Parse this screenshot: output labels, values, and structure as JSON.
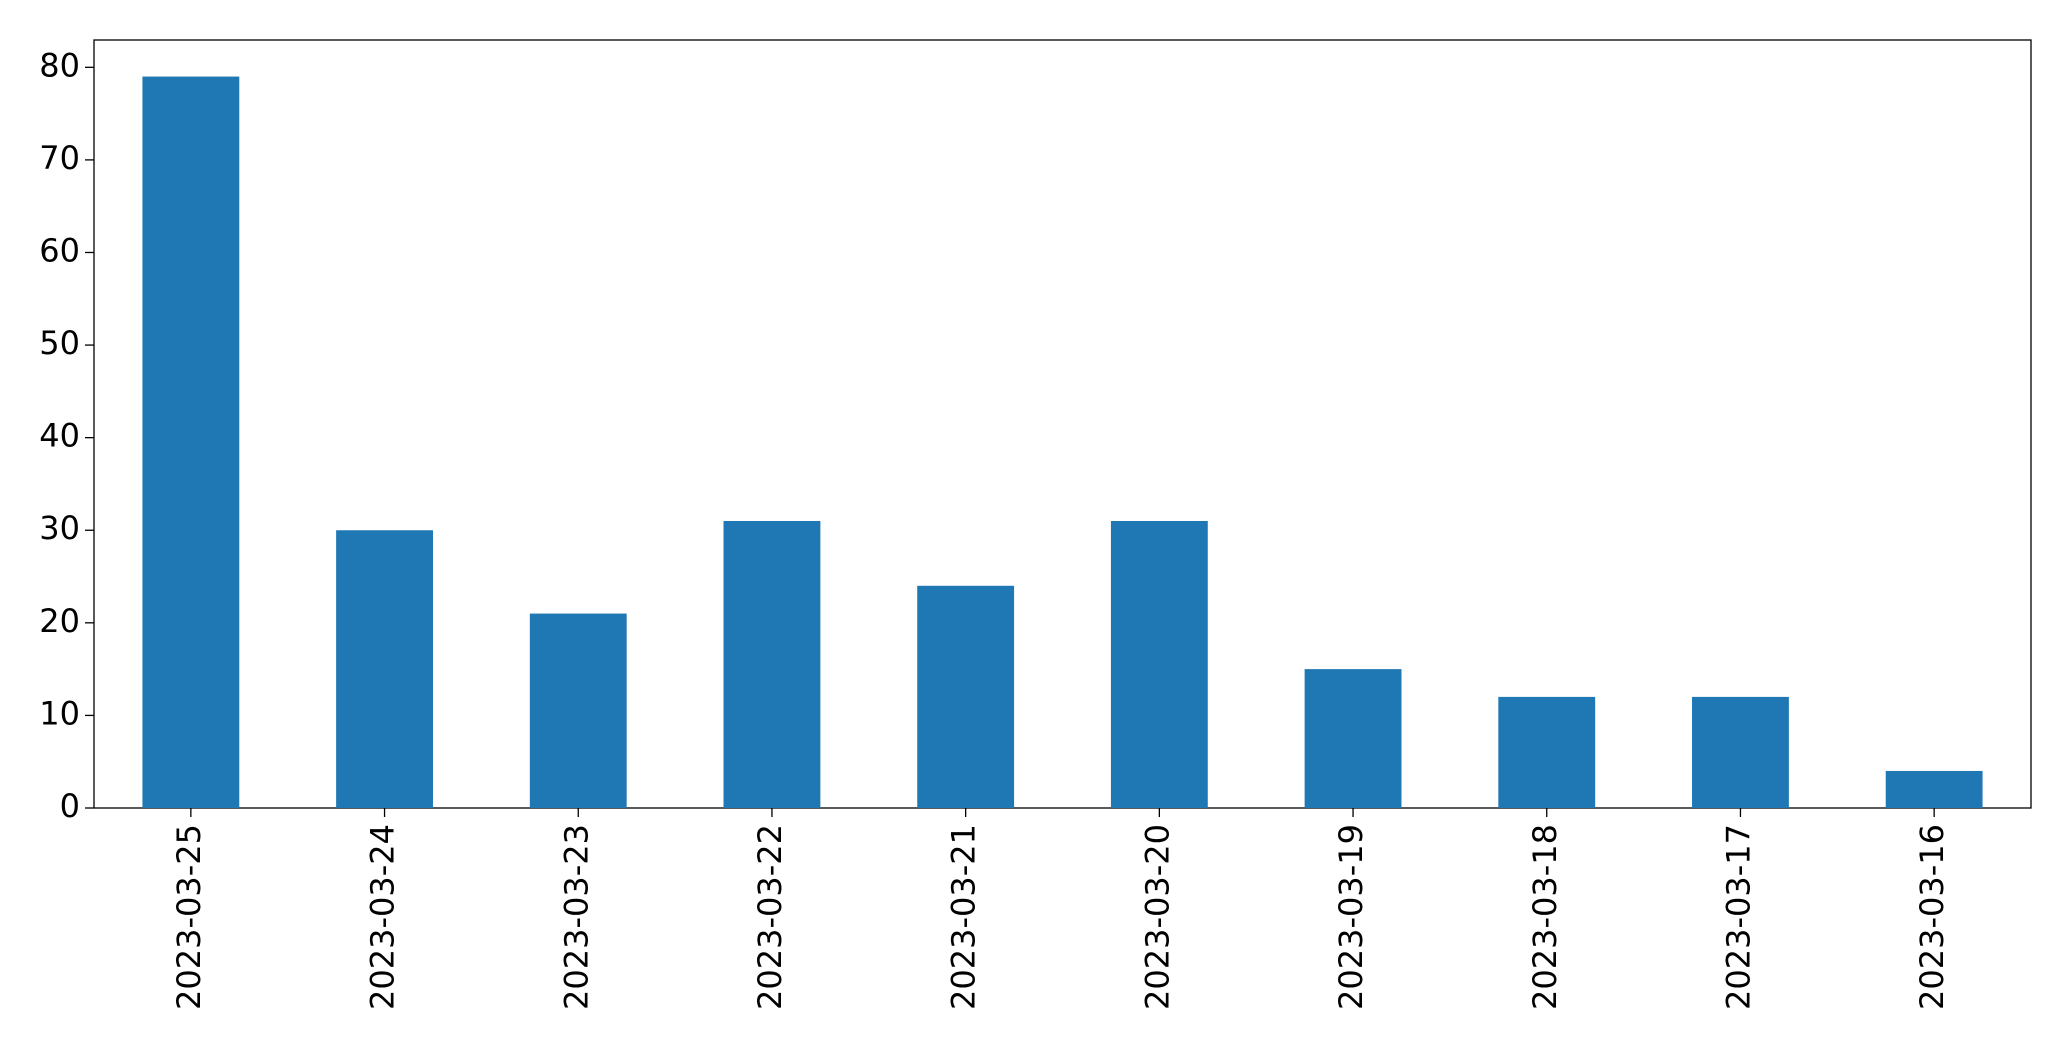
{
  "chart_data": {
    "type": "bar",
    "categories": [
      "2023-03-25",
      "2023-03-24",
      "2023-03-23",
      "2023-03-22",
      "2023-03-21",
      "2023-03-20",
      "2023-03-19",
      "2023-03-18",
      "2023-03-17",
      "2023-03-16"
    ],
    "values": [
      79,
      30,
      21,
      31,
      24,
      31,
      15,
      12,
      12,
      4
    ],
    "color": "#1f77b4",
    "ylim": [
      0,
      82.95
    ],
    "yticks": [
      0,
      10,
      20,
      30,
      40,
      50,
      60,
      70,
      80
    ],
    "grid": false
  }
}
